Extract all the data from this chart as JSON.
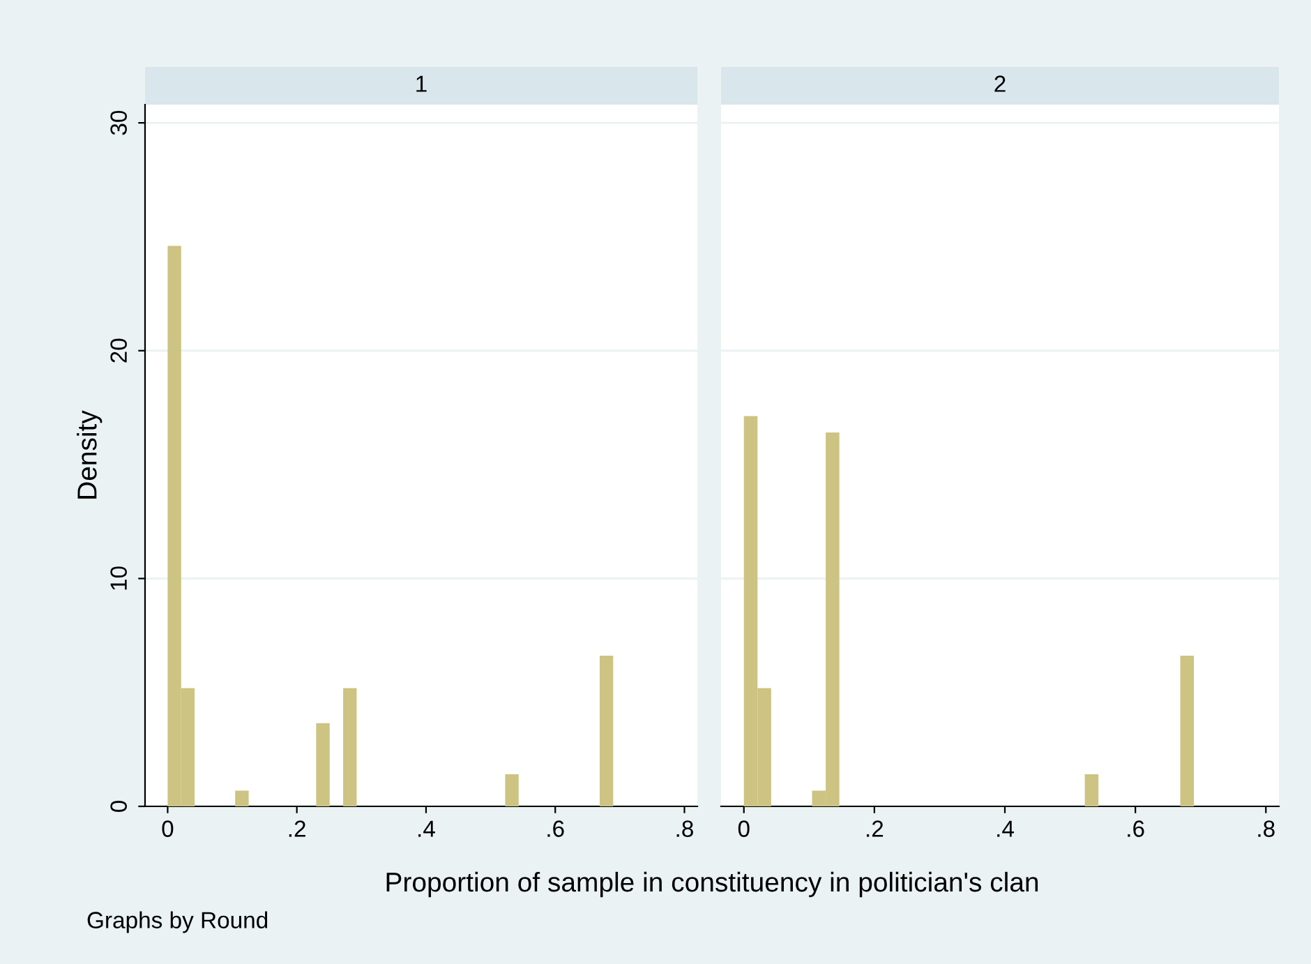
{
  "chart_data": [
    {
      "type": "histogram",
      "title": "1",
      "ylabel": "Density",
      "xlabel": "Proportion of sample in constituency in politician's clan",
      "annotations": [
        "Graphs by Round"
      ],
      "bins": [
        0,
        0.0209,
        0.0418,
        0.0627,
        0.0836,
        0.1045,
        0.1254,
        0.1463,
        0.1672,
        0.1881,
        0.209,
        0.2299,
        0.2508,
        0.2717,
        0.2926,
        0.3135,
        0.3344,
        0.3553,
        0.3762,
        0.3971,
        0.418,
        0.4389,
        0.4598,
        0.4807,
        0.5016,
        0.5225,
        0.5434,
        0.5643,
        0.5852,
        0.6061,
        0.627,
        0.6479,
        0.6688,
        0.6897
      ],
      "values": [
        24.6,
        5.19,
        0,
        0,
        0,
        0.69,
        0,
        0,
        0,
        0,
        0,
        3.65,
        0,
        5.19,
        0,
        0,
        0,
        0,
        0,
        0,
        0,
        0,
        0,
        0,
        0,
        1.41,
        0,
        0,
        0,
        0,
        0,
        0,
        6.61
      ],
      "color": "#cdc382",
      "xlim": [
        -0.035,
        0.82
      ],
      "ylim": [
        0,
        30.8
      ],
      "xticks": [
        0,
        {
          "value": 0.2,
          "label": ".2"
        },
        {
          "value": 0.4,
          "label": ".4"
        },
        {
          "value": 0.6,
          "label": ".6"
        },
        {
          "value": 0.8,
          "label": ".8"
        }
      ],
      "yticks": [
        0,
        10,
        20,
        30
      ],
      "grid": "y"
    },
    {
      "type": "histogram",
      "title": "2",
      "bins": [
        0,
        0.0209,
        0.0418,
        0.0627,
        0.0836,
        0.1045,
        0.1254,
        0.1463,
        0.1672,
        0.1881,
        0.209,
        0.2299,
        0.2508,
        0.2717,
        0.2926,
        0.3135,
        0.3344,
        0.3553,
        0.3762,
        0.3971,
        0.418,
        0.4389,
        0.4598,
        0.4807,
        0.5016,
        0.5225,
        0.5434,
        0.5643,
        0.5852,
        0.6061,
        0.627,
        0.6479,
        0.6688,
        0.6897
      ],
      "values": [
        17.13,
        5.19,
        0,
        0,
        0,
        0.69,
        16.41,
        0,
        0,
        0,
        0,
        0,
        0,
        0,
        0,
        0,
        0,
        0,
        0,
        0,
        0,
        0,
        0,
        0,
        0,
        1.41,
        0,
        0,
        0,
        0,
        0,
        0,
        6.61
      ],
      "color": "#cdc382",
      "xlim": [
        -0.035,
        0.82
      ],
      "ylim": [
        0,
        30.8
      ],
      "xticks": [
        0,
        {
          "value": 0.2,
          "label": ".2"
        },
        {
          "value": 0.4,
          "label": ".4"
        },
        {
          "value": 0.6,
          "label": ".6"
        },
        {
          "value": 0.8,
          "label": ".8"
        }
      ],
      "yticks": [
        0,
        10,
        20,
        30
      ],
      "grid": "y",
      "tick_labels": "x"
    }
  ]
}
